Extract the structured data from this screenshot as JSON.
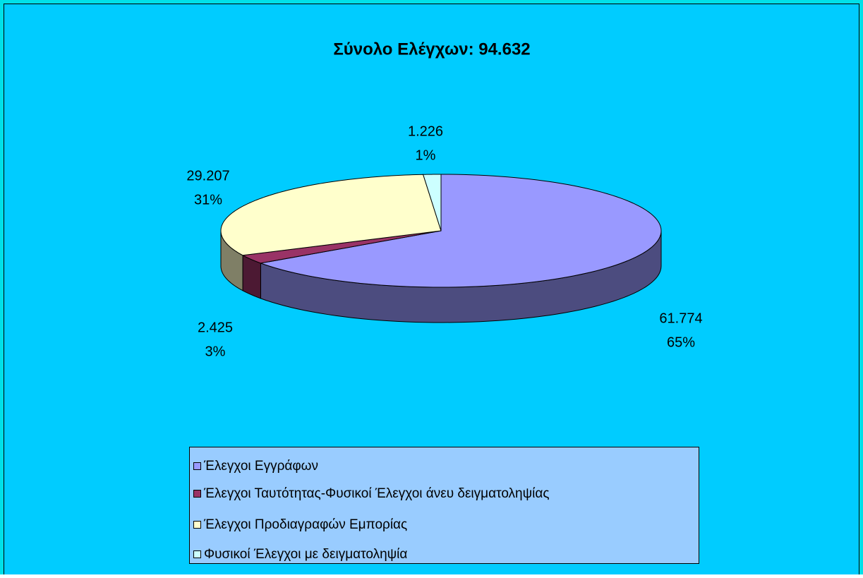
{
  "chart_data": {
    "type": "pie",
    "title": "Σύνολο Ελέγχων: 94.632",
    "categories": [
      "Έλεγχοι Εγγράφων",
      "Έλεγχοι Ταυτότητας-Φυσικοί Έλεγχοι άνευ δειγματοληψίας",
      "Έλεγχοι Προδιαγραφών Εμπορίας",
      "Φυσικοί Έλεγχοι με δειγματοληψία"
    ],
    "values": [
      61774,
      2425,
      29207,
      1226
    ],
    "value_labels": [
      "61.774",
      "2.425",
      "29.207",
      "1.226"
    ],
    "percent_labels": [
      "65%",
      "3%",
      "31%",
      "1%"
    ],
    "colors": [
      "#9999ff",
      "#993366",
      "#ffffcc",
      "#ccffff"
    ],
    "legend": "bottom"
  }
}
